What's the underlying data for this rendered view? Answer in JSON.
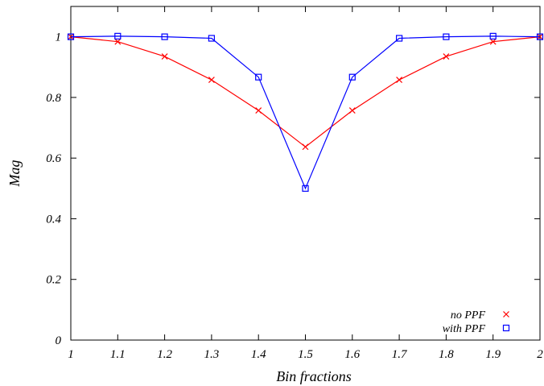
{
  "chart_data": {
    "type": "line",
    "xlabel": "Bin fractions",
    "ylabel": "Mag",
    "xlim": [
      1,
      2
    ],
    "ylim": [
      0,
      1.1
    ],
    "x_ticks": [
      1,
      1.1,
      1.2,
      1.3,
      1.4,
      1.5,
      1.6,
      1.7,
      1.8,
      1.9,
      2
    ],
    "x_tick_labels": [
      "1",
      "1.1",
      "1.2",
      "1.3",
      "1.4",
      "1.5",
      "1.6",
      "1.7",
      "1.8",
      "1.9",
      "2"
    ],
    "y_ticks": [
      0,
      0.2,
      0.4,
      0.6,
      0.8,
      1
    ],
    "y_tick_labels": [
      "0",
      "0.2",
      "0.4",
      "0.6",
      "0.8",
      "1"
    ],
    "grid": false,
    "legend_position": "bottom-right",
    "x": [
      1,
      1.1,
      1.2,
      1.3,
      1.4,
      1.5,
      1.6,
      1.7,
      1.8,
      1.9,
      2
    ],
    "series": [
      {
        "name": "no PPF",
        "color": "#ff0000",
        "marker": "x",
        "values": [
          1.0,
          0.984,
          0.935,
          0.858,
          0.757,
          0.637,
          0.757,
          0.858,
          0.935,
          0.984,
          1.0
        ]
      },
      {
        "name": "with PPF",
        "color": "#0000ff",
        "marker": "square",
        "values": [
          1.0,
          1.002,
          1.0,
          0.995,
          0.867,
          0.5,
          0.867,
          0.995,
          1.0,
          1.002,
          1.0
        ]
      }
    ]
  }
}
